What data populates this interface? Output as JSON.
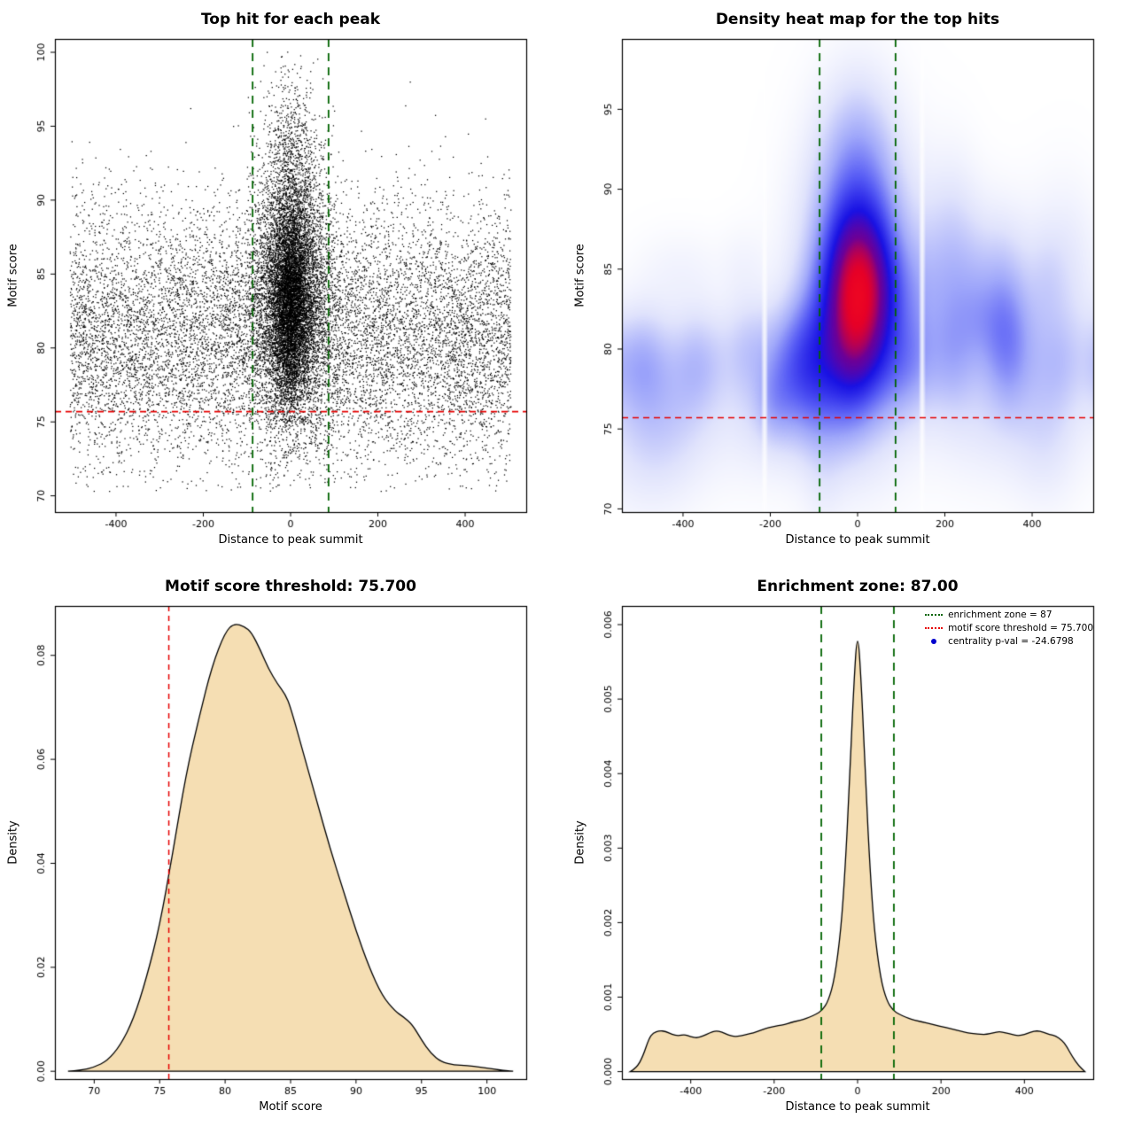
{
  "page": {
    "background": "#ffffff"
  },
  "colors": {
    "threshold_line": "#e60000",
    "zone_line": "#006400",
    "density_fill": "#f5deb3",
    "point_color": "#000000",
    "legend_pval_dot": "#0000cd"
  },
  "chart_data": [
    {
      "type": "scatter",
      "title": "Top hit for each peak",
      "xlabel": "Distance to peak summit",
      "ylabel": "Motif score",
      "xlim": [
        -540,
        540
      ],
      "ylim": [
        68.9,
        100.9
      ],
      "xticks": {
        "values": [
          -400,
          -200,
          0,
          200,
          400
        ],
        "labels": [
          "-400",
          "-200",
          "0",
          "200",
          "400"
        ]
      },
      "yticks": {
        "values": [
          70,
          75,
          80,
          85,
          90,
          95,
          100
        ],
        "labels": [
          "70",
          "75",
          "80",
          "85",
          "90",
          "95",
          "100"
        ]
      },
      "hline": 75.7,
      "vlines": [
        -87,
        87
      ],
      "scatter": {
        "seed": 42,
        "y_min": 70.3,
        "y_max": 100.2,
        "components": [
          {
            "kind": "uniform_x",
            "n": 11000,
            "x_min": -505,
            "x_max": 505,
            "y_mean": 80.8,
            "y_sd": 4.4
          },
          {
            "kind": "gauss",
            "n": 6000,
            "x_mean": 2,
            "x_sd": 46,
            "y_mean": 83.6,
            "y_sd": 4.2
          },
          {
            "kind": "gauss",
            "n": 4200,
            "x_mean": 0,
            "x_sd": 20,
            "y_mean": 83.0,
            "y_sd": 3.4
          },
          {
            "kind": "gauss",
            "n": 900,
            "x_mean": 2,
            "x_sd": 32,
            "y_mean": 92.5,
            "y_sd": 3.2
          }
        ]
      }
    },
    {
      "type": "heatmap",
      "title": "Density heat map for the top hits",
      "xlabel": "Distance to peak summit",
      "ylabel": "Motif score",
      "xlim": [
        -540,
        540
      ],
      "ylim": [
        69.8,
        99.4
      ],
      "xticks": {
        "values": [
          -400,
          -200,
          0,
          200,
          400
        ],
        "labels": [
          "-400",
          "-200",
          "0",
          "200",
          "400"
        ]
      },
      "yticks": {
        "values": [
          70,
          75,
          80,
          85,
          90,
          95
        ],
        "labels": [
          "70",
          "75",
          "80",
          "85",
          "90",
          "95"
        ]
      },
      "hline": 75.7,
      "vlines": [
        -87,
        87
      ],
      "heat": {
        "seed": 7,
        "core": {
          "x": 0,
          "y": 83.6,
          "sx": 46,
          "sy": 3.3,
          "a": 2.2
        },
        "halo": {
          "x": 0,
          "y": 84.2,
          "sx": 85,
          "sy": 6.0,
          "a": 0.55
        },
        "upper": {
          "x": 0,
          "y": 91.5,
          "sx": 55,
          "sy": 3.5,
          "a": 0.28
        },
        "band": {
          "y": 79.2,
          "sy": 2.2,
          "a": 0.28
        },
        "band2": {
          "y": 76.0,
          "sy": 3.2,
          "a": 0.1
        },
        "n_blobs": 34,
        "seams": [
          -213,
          148
        ]
      },
      "colormap": [
        [
          0.0,
          [
            255,
            255,
            255
          ]
        ],
        [
          0.18,
          [
            224,
            227,
            252
          ]
        ],
        [
          0.4,
          [
            160,
            168,
            250
          ]
        ],
        [
          0.6,
          [
            85,
            90,
            245
          ]
        ],
        [
          0.78,
          [
            25,
            18,
            228
          ]
        ],
        [
          0.9,
          [
            110,
            0,
            150
          ]
        ],
        [
          0.96,
          [
            230,
            0,
            40
          ]
        ],
        [
          1.0,
          [
            255,
            20,
            20
          ]
        ]
      ]
    },
    {
      "type": "density",
      "title": "Motif score threshold: 75.700",
      "xlabel": "Motif score",
      "ylabel": "Density",
      "xlim": [
        67,
        103
      ],
      "ylim": [
        -0.0015,
        0.0895
      ],
      "xticks": {
        "values": [
          70,
          75,
          80,
          85,
          90,
          95,
          100
        ],
        "labels": [
          "70",
          "75",
          "80",
          "85",
          "90",
          "95",
          "100"
        ]
      },
      "yticks": {
        "values": [
          0,
          0.02,
          0.04,
          0.06,
          0.08
        ],
        "labels": [
          "0.00",
          "0.02",
          "0.04",
          "0.06",
          "0.08"
        ]
      },
      "vline_red": 75.7,
      "curve": {
        "x": [
          68,
          69,
          70,
          71,
          72,
          73,
          74,
          75,
          76,
          77,
          78,
          79,
          80,
          80.7,
          81.5,
          82,
          82.7,
          83.3,
          84,
          84.6,
          85,
          86,
          87,
          88,
          89,
          90,
          91,
          92,
          93,
          93.6,
          94.3,
          95,
          95.7,
          96.5,
          97.5,
          98.5,
          99.5,
          100.5,
          101.5,
          102
        ],
        "y": [
          0,
          0.0002,
          0.0008,
          0.002,
          0.005,
          0.01,
          0.018,
          0.028,
          0.042,
          0.057,
          0.068,
          0.078,
          0.0845,
          0.0862,
          0.0855,
          0.0845,
          0.081,
          0.0775,
          0.0745,
          0.0725,
          0.07,
          0.061,
          0.052,
          0.043,
          0.035,
          0.027,
          0.02,
          0.0145,
          0.0115,
          0.0105,
          0.009,
          0.006,
          0.0035,
          0.0018,
          0.0012,
          0.0011,
          0.0008,
          0.0004,
          0.0001,
          0
        ]
      }
    },
    {
      "type": "density",
      "title": "Enrichment zone: 87.00",
      "xlabel": "Distance to peak summit",
      "ylabel": "Density",
      "xlim": [
        -565,
        565
      ],
      "ylim": [
        -0.0001,
        0.00625
      ],
      "xticks": {
        "values": [
          -400,
          -200,
          0,
          200,
          400
        ],
        "labels": [
          "-400",
          "-200",
          "0",
          "200",
          "400"
        ]
      },
      "yticks": {
        "values": [
          0,
          0.001,
          0.002,
          0.003,
          0.004,
          0.005,
          0.006
        ],
        "labels": [
          "0.000",
          "0.001",
          "0.002",
          "0.003",
          "0.004",
          "0.005",
          "0.006"
        ]
      },
      "vlines": [
        -87,
        87
      ],
      "curve": {
        "x": [
          -545,
          -530,
          -515,
          -500,
          -490,
          -475,
          -460,
          -445,
          -430,
          -415,
          -400,
          -385,
          -370,
          -355,
          -340,
          -325,
          -310,
          -295,
          -280,
          -265,
          -250,
          -235,
          -220,
          -205,
          -190,
          -175,
          -160,
          -145,
          -130,
          -115,
          -100,
          -85,
          -70,
          -55,
          -40,
          -30,
          -20,
          -10,
          0,
          10,
          20,
          30,
          40,
          55,
          70,
          85,
          100,
          115,
          130,
          145,
          160,
          175,
          190,
          205,
          220,
          235,
          250,
          265,
          280,
          295,
          310,
          325,
          340,
          355,
          370,
          385,
          400,
          415,
          430,
          445,
          460,
          475,
          490,
          500,
          515,
          530,
          545
        ],
        "y": [
          0,
          5e-05,
          0.0002,
          0.00045,
          0.00052,
          0.00055,
          0.00054,
          0.0005,
          0.00048,
          0.0005,
          0.00047,
          0.00045,
          0.00048,
          0.00052,
          0.00055,
          0.00053,
          0.00049,
          0.00047,
          0.00048,
          0.0005,
          0.00052,
          0.00055,
          0.00058,
          0.0006,
          0.00062,
          0.00063,
          0.00066,
          0.00068,
          0.0007,
          0.00073,
          0.00077,
          0.00082,
          0.00095,
          0.00125,
          0.0019,
          0.0027,
          0.0038,
          0.0051,
          0.006,
          0.0051,
          0.0038,
          0.0027,
          0.0019,
          0.00125,
          0.00095,
          0.00082,
          0.00077,
          0.00073,
          0.0007,
          0.00068,
          0.00066,
          0.00064,
          0.00062,
          0.0006,
          0.00058,
          0.00056,
          0.00054,
          0.00052,
          0.00051,
          0.0005,
          0.0005,
          0.00052,
          0.00054,
          0.00052,
          0.0005,
          0.00048,
          0.0005,
          0.00053,
          0.00055,
          0.00053,
          0.0005,
          0.00048,
          0.00042,
          0.00035,
          0.0002,
          8e-05,
          0
        ]
      },
      "legend": {
        "items": [
          {
            "label": "enrichment zone = 87",
            "style": "green-dotted"
          },
          {
            "label": "motif score threshold = 75.700",
            "style": "red-dotted"
          },
          {
            "label": "centrality p-val = -24.6798",
            "style": "blue-dot"
          }
        ]
      }
    }
  ]
}
